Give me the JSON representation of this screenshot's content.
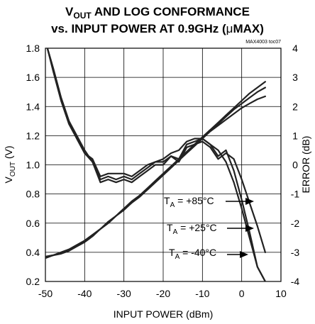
{
  "chart_data": {
    "type": "line",
    "title_lines": [
      {
        "main": "V",
        "sub": "OUT",
        "rest": " AND LOG CONFORMANCE"
      },
      {
        "main": "vs. INPUT POWER AT 0.9GHz (",
        "micro": "μ",
        "rest": "MAX)"
      }
    ],
    "tag": "MAX4003 toc07",
    "xlabel": "INPUT POWER (dBm)",
    "ylabel_left": {
      "main": "V",
      "sub": "OUT",
      "rest": " (V)"
    },
    "ylabel_right": "ERROR (dB)",
    "xlim": [
      -50,
      10
    ],
    "ylim_left": [
      0.2,
      1.8
    ],
    "ylim_right": [
      -4,
      4
    ],
    "xticks": [
      "-50",
      "-40",
      "-30",
      "-20",
      "-10",
      "0",
      "10"
    ],
    "yticks_left": [
      "0.2",
      "0.4",
      "0.6",
      "0.8",
      "1.0",
      "1.2",
      "1.4",
      "1.6",
      "1.8"
    ],
    "yticks_right": [
      "-4",
      "-3",
      "-2",
      "-1",
      "0",
      "1",
      "2",
      "3",
      "4"
    ],
    "grid": true,
    "annotations": [
      {
        "pre": "T",
        "sub": "A",
        "text": " = +85°C"
      },
      {
        "pre": "T",
        "sub": "A",
        "text": " = +25°C"
      },
      {
        "pre": "T",
        "sub": "A",
        "text": " = -40°C"
      }
    ],
    "series": [
      {
        "axis": "left",
        "x": [
          -50,
          -48,
          -46,
          -44,
          -42,
          -40,
          -38,
          -36,
          -34,
          -32,
          -30,
          -28,
          -26,
          -24,
          -22,
          -20,
          -18,
          -16,
          -14,
          -12,
          -10,
          -8,
          -6,
          -4,
          -2,
          0,
          2,
          4,
          6
        ],
        "y": [
          0.37,
          0.38,
          0.4,
          0.42,
          0.45,
          0.48,
          0.52,
          0.56,
          0.6,
          0.65,
          0.7,
          0.74,
          0.79,
          0.83,
          0.88,
          0.93,
          0.98,
          1.03,
          1.09,
          1.14,
          1.19,
          1.24,
          1.28,
          1.33,
          1.38,
          1.42,
          1.46,
          1.5,
          1.53
        ]
      },
      {
        "axis": "left",
        "x": [
          -50,
          -48,
          -46,
          -44,
          -42,
          -40,
          -38,
          -36,
          -34,
          -32,
          -30,
          -28,
          -26,
          -24,
          -22,
          -20,
          -18,
          -16,
          -14,
          -12,
          -10,
          -8,
          -6,
          -4,
          -2,
          0,
          2,
          4,
          6
        ],
        "y": [
          0.37,
          0.38,
          0.4,
          0.42,
          0.45,
          0.48,
          0.52,
          0.56,
          0.61,
          0.65,
          0.7,
          0.75,
          0.79,
          0.84,
          0.89,
          0.94,
          0.99,
          1.04,
          1.09,
          1.14,
          1.19,
          1.24,
          1.29,
          1.34,
          1.39,
          1.44,
          1.49,
          1.53,
          1.57
        ]
      },
      {
        "axis": "left",
        "x": [
          -50,
          -48,
          -46,
          -44,
          -42,
          -40,
          -38,
          -36,
          -34,
          -32,
          -30,
          -28,
          -26,
          -24,
          -22,
          -20,
          -18,
          -16,
          -14,
          -12,
          -10,
          -8,
          -6,
          -4,
          -2,
          0,
          2,
          4,
          6
        ],
        "y": [
          0.36,
          0.38,
          0.39,
          0.41,
          0.44,
          0.47,
          0.51,
          0.56,
          0.6,
          0.65,
          0.69,
          0.74,
          0.78,
          0.83,
          0.88,
          0.93,
          0.98,
          1.03,
          1.08,
          1.13,
          1.18,
          1.23,
          1.27,
          1.31,
          1.35,
          1.39,
          1.42,
          1.45,
          1.47
        ]
      },
      {
        "axis": "right",
        "x": [
          -49.5,
          -48,
          -46,
          -44,
          -42,
          -40,
          -38,
          -36,
          -34,
          -32,
          -30,
          -28,
          -26,
          -24,
          -22,
          -20,
          -18,
          -16,
          -14,
          -12,
          -10,
          -8,
          -6,
          -4,
          -2,
          0,
          2,
          4,
          6
        ],
        "y": [
          4.0,
          3.3,
          2.3,
          1.5,
          0.9,
          0.4,
          0.1,
          -0.6,
          -0.5,
          -0.6,
          -0.5,
          -0.6,
          -0.4,
          -0.2,
          0.0,
          0.0,
          0.3,
          0.1,
          0.6,
          0.7,
          0.8,
          0.6,
          0.2,
          0.4,
          0.2,
          -0.5,
          -1.3,
          -2.1,
          -3.0
        ]
      },
      {
        "axis": "right",
        "x": [
          -49.5,
          -48,
          -46,
          -44,
          -42,
          -40,
          -38,
          -36,
          -34,
          -32,
          -30,
          -28,
          -26,
          -24,
          -22,
          -20,
          -18,
          -16,
          -14,
          -12,
          -10,
          -8,
          -6,
          -4,
          -2,
          0,
          2,
          4,
          6
        ],
        "y": [
          4.0,
          3.2,
          2.2,
          1.4,
          0.9,
          0.4,
          0.2,
          -0.4,
          -0.3,
          -0.3,
          -0.3,
          -0.4,
          -0.2,
          0.0,
          0.1,
          0.2,
          0.4,
          0.5,
          0.8,
          0.9,
          0.9,
          0.7,
          0.5,
          0.1,
          -0.6,
          -1.5,
          -2.5,
          -3.5,
          -4.0
        ]
      },
      {
        "axis": "right",
        "x": [
          -49.5,
          -48,
          -46,
          -44,
          -42,
          -40,
          -38,
          -36,
          -34,
          -32,
          -30,
          -28,
          -26,
          -24,
          -22,
          -20,
          -18,
          -16,
          -14,
          -12,
          -10,
          -8,
          -6,
          -4,
          -2,
          0,
          2,
          4,
          6
        ],
        "y": [
          4.0,
          3.3,
          2.3,
          1.5,
          1.0,
          0.5,
          0.1,
          -0.5,
          -0.4,
          -0.5,
          -0.4,
          -0.5,
          -0.3,
          -0.1,
          0.1,
          0.1,
          0.3,
          0.2,
          0.7,
          0.8,
          0.9,
          0.7,
          0.3,
          0.5,
          -0.2,
          -1.2,
          -2.3,
          -3.5,
          -4.0
        ]
      }
    ]
  }
}
